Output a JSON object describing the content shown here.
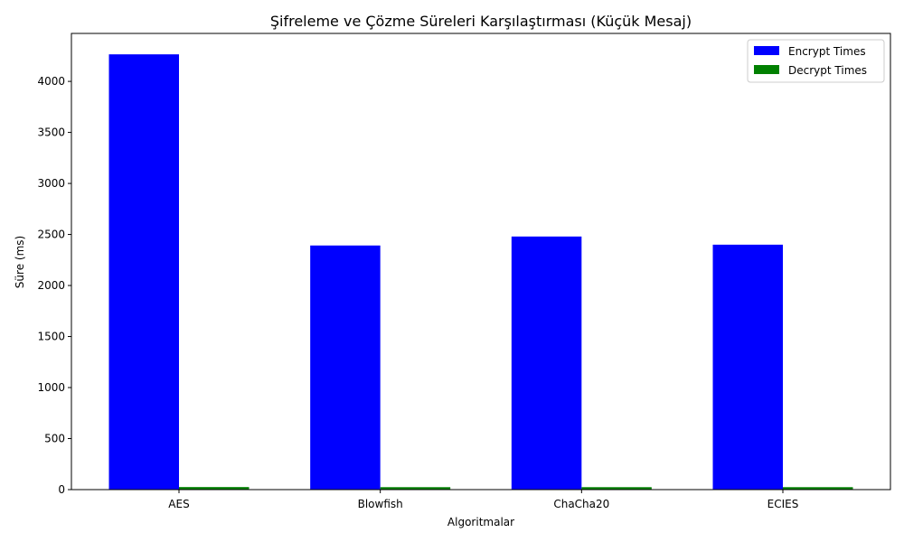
{
  "chart_data": {
    "type": "bar",
    "title": "Şifreleme ve Çözme Süreleri Karşılaştırması (Küçük Mesaj)",
    "xlabel": "Algoritmalar",
    "ylabel": "Süre (ms)",
    "categories": [
      "AES",
      "Blowfish",
      "ChaCha20",
      "ECIES"
    ],
    "series": [
      {
        "name": "Encrypt Times",
        "color": "#0000ff",
        "values": [
          4265,
          2392,
          2480,
          2400
        ]
      },
      {
        "name": "Decrypt Times",
        "color": "#008000",
        "values": [
          25,
          24,
          24,
          24
        ]
      }
    ],
    "ylim": [
      0,
      4470
    ],
    "yticks": [
      0,
      500,
      1000,
      1500,
      2000,
      2500,
      3000,
      3500,
      4000
    ],
    "grid": false,
    "legend_position": "top-right"
  }
}
